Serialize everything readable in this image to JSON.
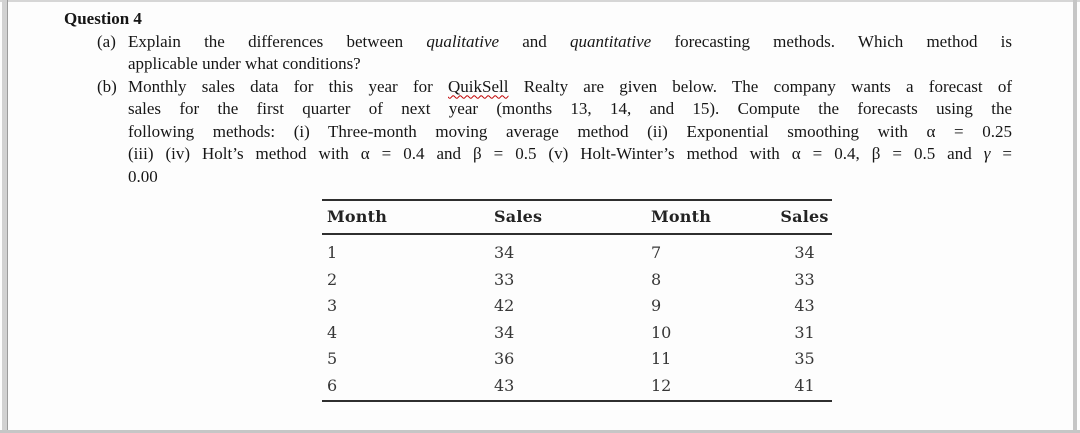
{
  "colors": {
    "spellcheck_red": "#c00000",
    "table_rule": "#2f2f2f",
    "body_text": "#161616",
    "table_text": "#373737",
    "page_edge_gray": "#c6c6c6"
  },
  "doc": {
    "heading": "Question 4",
    "parts": [
      {
        "label": "(a)",
        "lines": [
          {
            "segments": [
              {
                "text": "Explain the differences between "
              },
              {
                "text": "qualitative"
              },
              {
                "text": " and "
              },
              {
                "text": "quantitative"
              },
              {
                "text": " forecasting methods. Which method is"
              }
            ]
          },
          {
            "segments": [
              {
                "text": "applicable under what conditions?"
              }
            ]
          }
        ]
      },
      {
        "label": "(b)",
        "lines": [
          {
            "segments": [
              {
                "text": "Monthly sales data for this year for "
              },
              {
                "text": "QuikSell"
              },
              {
                "text": " Realty are given below. The company wants a forecast of"
              }
            ]
          },
          {
            "segments": [
              {
                "text": "sales for the first quarter of next year (months 13, 14, and 15). Compute the forecasts using the"
              }
            ]
          },
          {
            "segments": [
              {
                "text": "following methods: (i) Three-month moving average method (ii) Exponential smoothing with α = 0.25"
              }
            ]
          },
          {
            "segments": [
              {
                "text": "(iii) (iv) Holt’s method with α = 0.4 and β = 0.5 (v) Holt-Winter’s method with α = 0.4, β = 0.5 and "
              },
              {
                "text": "γ"
              },
              {
                "text": " ="
              }
            ]
          },
          {
            "segments": [
              {
                "text": "0.00"
              }
            ]
          }
        ]
      }
    ]
  },
  "table": {
    "headers": [
      "Month",
      "Sales",
      "Month",
      "Sales"
    ],
    "rows": [
      [
        "1",
        "34",
        "7",
        "34"
      ],
      [
        "2",
        "33",
        "8",
        "33"
      ],
      [
        "3",
        "42",
        "9",
        "43"
      ],
      [
        "4",
        "34",
        "10",
        "31"
      ],
      [
        "5",
        "36",
        "11",
        "35"
      ],
      [
        "6",
        "43",
        "12",
        "41"
      ]
    ]
  }
}
